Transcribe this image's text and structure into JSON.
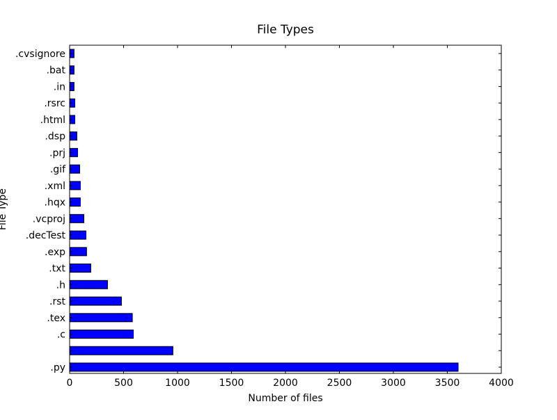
{
  "chart_data": {
    "type": "bar",
    "orientation": "horizontal",
    "title": "File Types",
    "xlabel": "Number of files",
    "ylabel": "File Type",
    "xlim": [
      0,
      4000
    ],
    "xticks": [
      0,
      500,
      1000,
      1500,
      2000,
      2500,
      3000,
      3500,
      4000
    ],
    "grid": false,
    "bar_color": "#0000ff",
    "edge_color": "#000000",
    "categories": [
      ".py",
      "",
      ".c",
      ".tex",
      ".rst",
      ".h",
      ".txt",
      ".exp",
      ".decTest",
      ".vcproj",
      ".hqx",
      ".xml",
      ".gif",
      ".prj",
      ".dsp",
      ".html",
      ".rsrc",
      ".in",
      ".bat",
      ".cvsignore"
    ],
    "values": [
      3600,
      957,
      590,
      581,
      480,
      351,
      196,
      157,
      151,
      132,
      99,
      99,
      93,
      74,
      67,
      48,
      48,
      41,
      41,
      41
    ]
  }
}
